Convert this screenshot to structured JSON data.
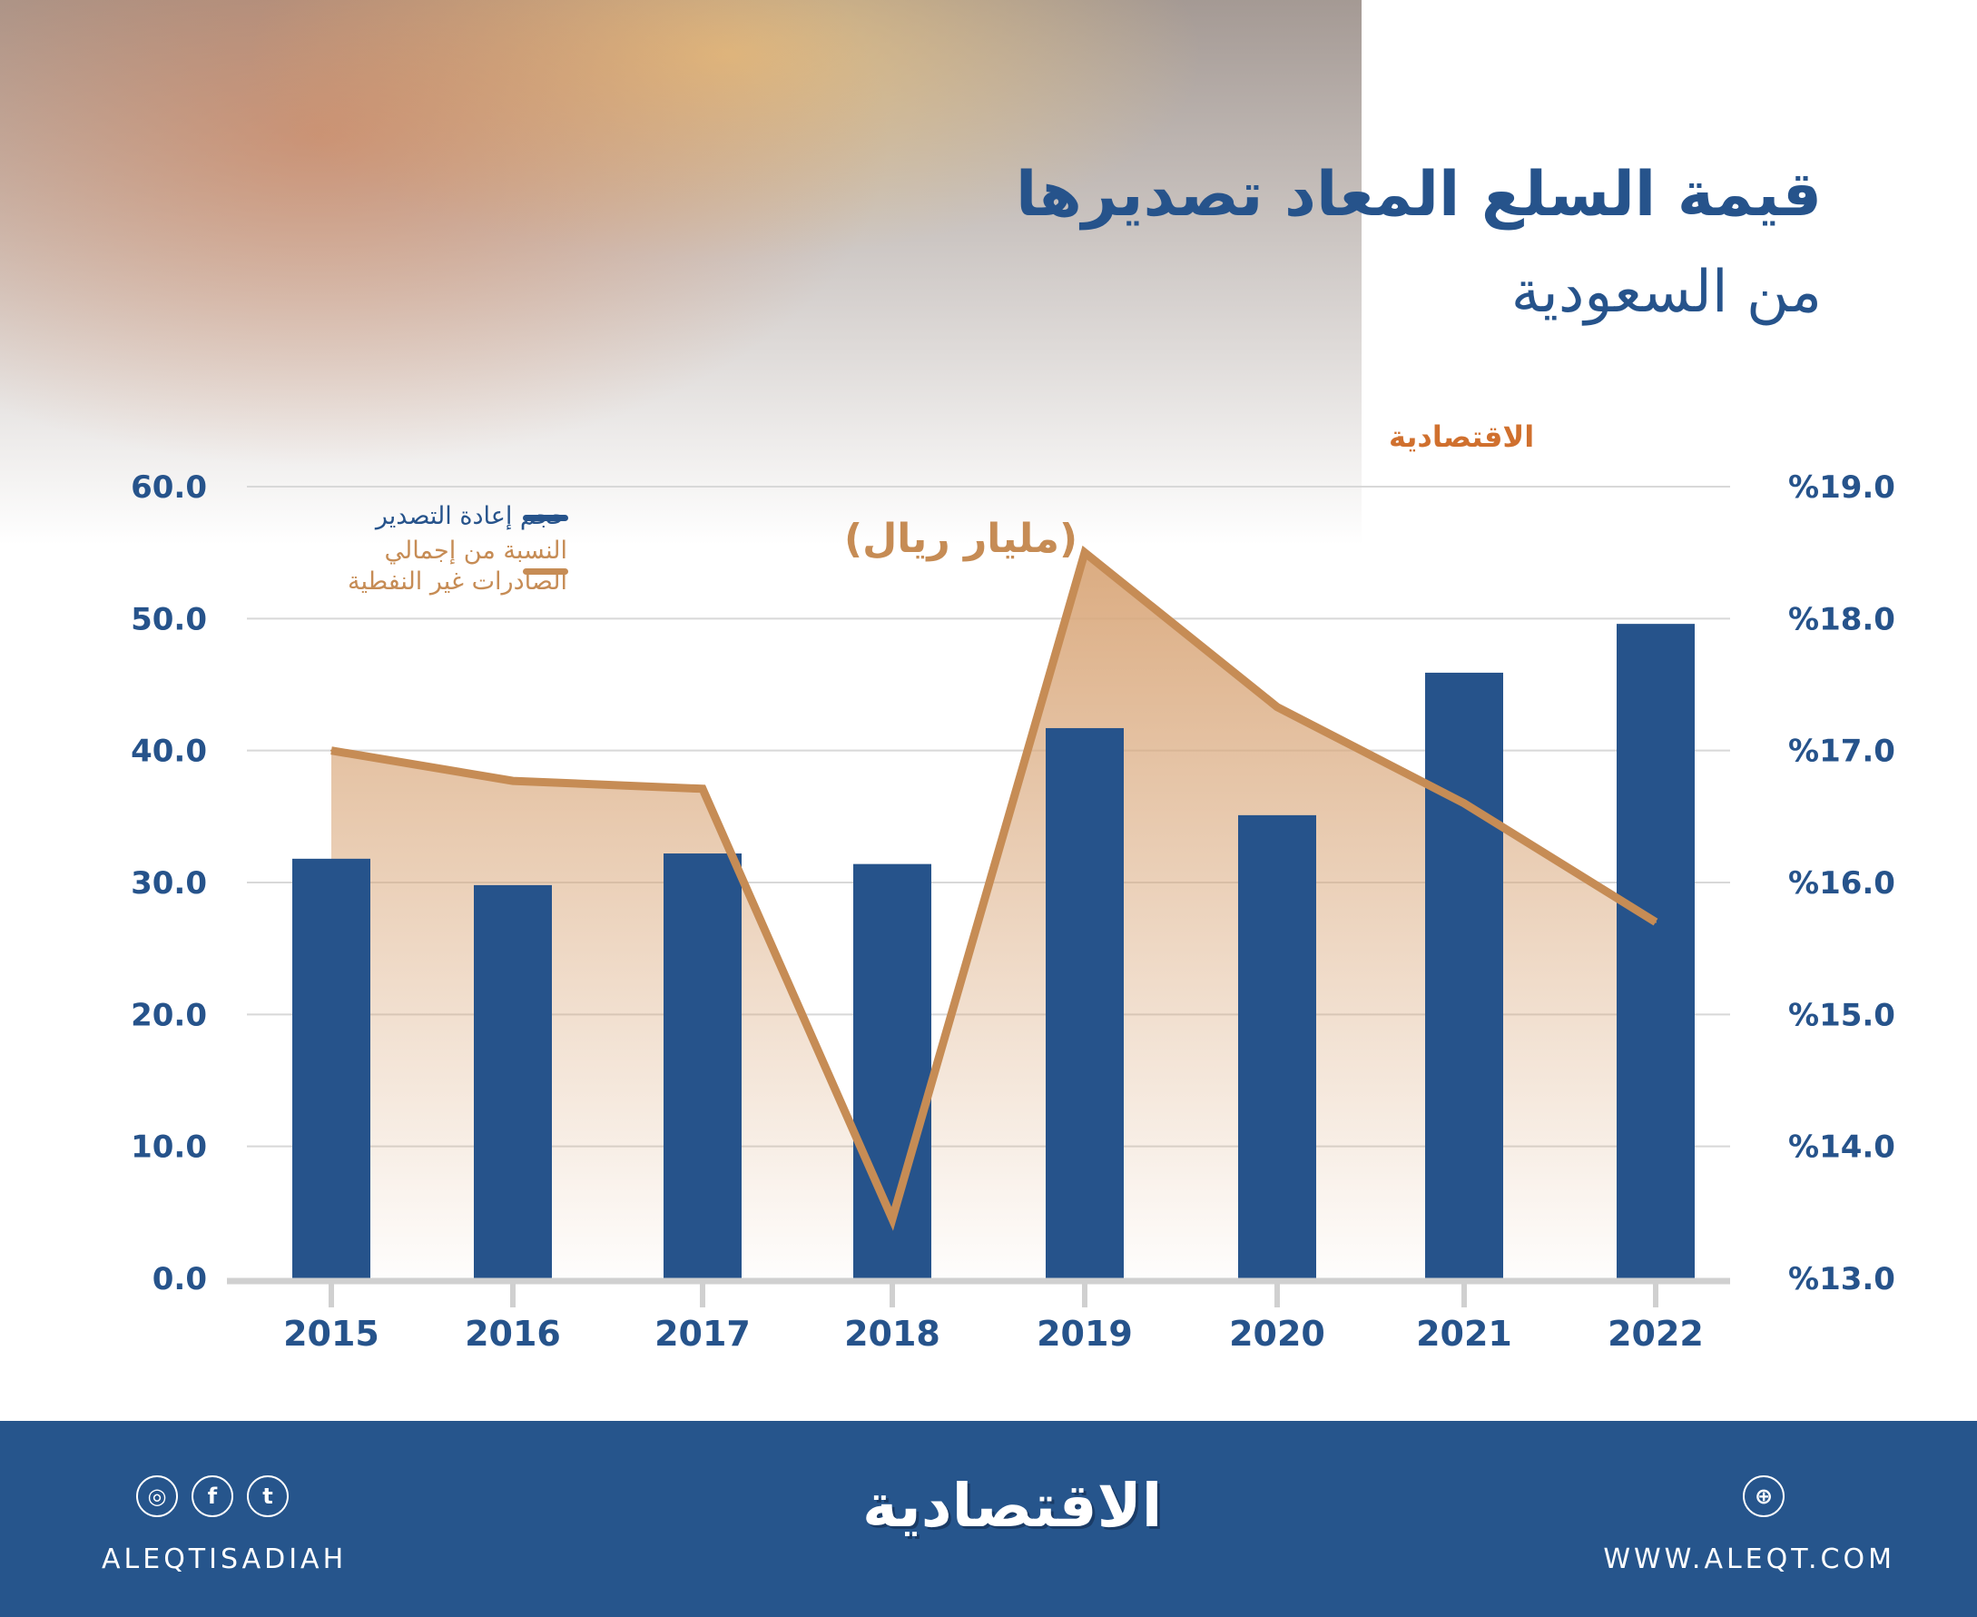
{
  "title_line1": "قيمة السلع المعاد تصديرها",
  "title_line2": "من السعودية",
  "brand_small": "الاقتصادية",
  "unit_label": "(مليار ريال)",
  "legend": {
    "bars": "حجم إعادة التصدير",
    "line_1": "النسبة من إجمالي",
    "line_2": "الصادرات غير النفطية"
  },
  "colors": {
    "bar": "#26538b",
    "line": "#c68c55",
    "area": "#d9a77a",
    "footer": "#26558c"
  },
  "chart_data": {
    "type": "bar+line",
    "categories": [
      "2015",
      "2016",
      "2017",
      "2018",
      "2019",
      "2020",
      "2021",
      "2022"
    ],
    "series": [
      {
        "name": "حجم إعادة التصدير",
        "type": "bar",
        "axis": "left",
        "values": [
          31.8,
          29.8,
          32.2,
          31.4,
          41.7,
          35.1,
          45.9,
          49.6
        ]
      },
      {
        "name": "النسبة من إجمالي الصادرات غير النفطية",
        "type": "area-line",
        "axis": "right",
        "values": [
          17.0,
          16.77,
          16.71,
          13.45,
          18.5,
          17.33,
          16.6,
          15.7
        ]
      }
    ],
    "left_axis": {
      "range": [
        0,
        60
      ],
      "ticks": [
        "0.0",
        "10.0",
        "20.0",
        "30.0",
        "40.0",
        "50.0",
        "60.0"
      ]
    },
    "right_axis": {
      "range": [
        13,
        19
      ],
      "ticks": [
        "%13.0",
        "%14.0",
        "%15.0",
        "%16.0",
        "%17.0",
        "%18.0",
        "%19.0"
      ]
    },
    "grid": true,
    "legend_placement": "top-left"
  },
  "footer": {
    "handle": "ALEQTISADIAH",
    "site": "WWW.ALEQT.COM",
    "logo": "الاقتصادية",
    "icons": [
      "instagram-icon",
      "facebook-icon",
      "twitter-icon",
      "web-icon"
    ]
  }
}
